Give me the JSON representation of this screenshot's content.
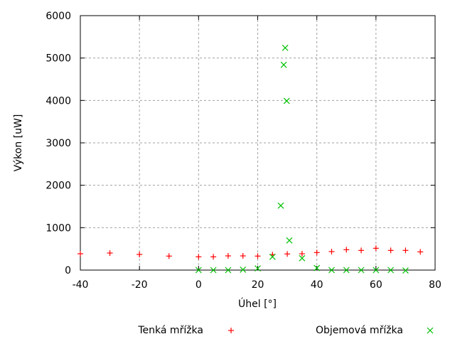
{
  "chart_data": {
    "type": "scatter",
    "xlabel": "Úhel [°]",
    "ylabel": "Výkon [uW]",
    "xlim": [
      -40,
      80
    ],
    "ylim": [
      0,
      6000
    ],
    "xticks": [
      "-40",
      "-20",
      "0",
      "20",
      "40",
      "60",
      "80"
    ],
    "yticks": [
      "0",
      "1000",
      "2000",
      "3000",
      "4000",
      "5000",
      "6000"
    ],
    "grid": true,
    "legend": "bottom",
    "series": [
      {
        "name": "Tenká mřížka",
        "marker": "plus",
        "color": "#ff0000",
        "x": [
          -40,
          -30,
          -20,
          -10,
          0,
          5,
          10,
          15,
          20,
          25,
          30,
          35,
          40,
          45,
          50,
          55,
          60,
          65,
          70,
          75
        ],
        "y": [
          385,
          402,
          369,
          330,
          313,
          313,
          335,
          335,
          330,
          363,
          380,
          385,
          413,
          436,
          480,
          464,
          514,
          464,
          464,
          430
        ]
      },
      {
        "name": "Objemová mřížka",
        "marker": "cross",
        "color": "#00c000",
        "x": [
          0,
          5,
          10,
          15,
          20,
          25,
          27.8,
          28.8,
          29.3,
          29.8,
          30.7,
          35,
          40,
          45,
          50,
          55,
          60,
          65,
          70
        ],
        "y": [
          0,
          0,
          0,
          10,
          40,
          313,
          1520,
          4840,
          5240,
          3990,
          698,
          280,
          50,
          0,
          0,
          0,
          0,
          0,
          -10
        ]
      }
    ]
  }
}
